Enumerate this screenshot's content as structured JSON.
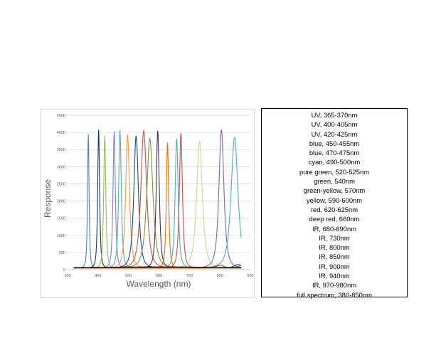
{
  "chart_data": {
    "type": "line",
    "title": "",
    "xlabel": "Wavelength (nm)",
    "ylabel": "Response",
    "xlim": [
      300,
      900
    ],
    "ylim": [
      0,
      4500
    ],
    "x_ticks": [
      300,
      400,
      500,
      600,
      700,
      800,
      900
    ],
    "y_ticks": [
      0,
      500,
      1000,
      1500,
      2000,
      2500,
      3000,
      3500,
      4000,
      4500
    ],
    "grid": "horizontal",
    "baseline": 50,
    "series": [
      {
        "name": "UV, 365-370nm",
        "color": "#4f81bd",
        "peak_x": 368,
        "peak_y": 3950,
        "fwhm": 8
      },
      {
        "name": "UV, 400-405nm",
        "color": "#17375e",
        "peak_x": 402,
        "peak_y": 4080,
        "fwhm": 10
      },
      {
        "name": "UV, 420-425nm",
        "color": "#9bbb59",
        "peak_x": 422,
        "peak_y": 3900,
        "fwhm": 11
      },
      {
        "name": "blue, 450-455nm",
        "color": "#7f7fd5",
        "peak_x": 453,
        "peak_y": 4030,
        "fwhm": 12
      },
      {
        "name": "blue, 470-475nm",
        "color": "#4bacc6",
        "peak_x": 472,
        "peak_y": 4060,
        "fwhm": 14
      },
      {
        "name": "cyan, 490-500nm",
        "color": "#f79646",
        "peak_x": 497,
        "peak_y": 3930,
        "fwhm": 20
      },
      {
        "name": "pure green, 520-525nm",
        "color": "#1f497d",
        "peak_x": 525,
        "peak_y": 3900,
        "fwhm": 24
      },
      {
        "name": "green, 540nm",
        "color": "#c0504d",
        "peak_x": 550,
        "peak_y": 4050,
        "fwhm": 30
      },
      {
        "name": "green-yellow, 570nm",
        "color": "#77933c",
        "peak_x": 570,
        "peak_y": 3820,
        "fwhm": 32
      },
      {
        "name": "yellow, 590-600nm",
        "color": "#403151",
        "peak_x": 596,
        "peak_y": 4050,
        "fwhm": 16
      },
      {
        "name": "red, 620-625nm",
        "color": "#e46c0a",
        "peak_x": 628,
        "peak_y": 3700,
        "fwhm": 12
      },
      {
        "name": "deep red, 660nm",
        "color": "#4bacc6",
        "peak_x": 658,
        "peak_y": 3820,
        "fwhm": 16
      },
      {
        "name": "IR, 680-690nm",
        "color": "#c0504d",
        "peak_x": 672,
        "peak_y": 3980,
        "fwhm": 16
      },
      {
        "name": "IR, 730nm",
        "color": "#c3d69b",
        "peak_x": 733,
        "peak_y": 3730,
        "fwhm": 30
      },
      {
        "name": "IR, 800nm",
        "color": "#8064a2",
        "peak_x": 805,
        "peak_y": 4080,
        "fwhm": 26
      },
      {
        "name": "IR, 850nm",
        "color": "#4bacc6",
        "peak_x": 848,
        "peak_y": 3850,
        "fwhm": 36
      },
      {
        "name": "IR, 900nm",
        "color": "#1f497d",
        "peak_x": 860,
        "peak_y": 150,
        "fwhm": 40
      },
      {
        "name": "IR, 940nm",
        "color": "#7f7f7f",
        "peak_x": 870,
        "peak_y": 120,
        "fwhm": 40
      },
      {
        "name": "IR, 970-980nm",
        "color": "#984807",
        "peak_x": 800,
        "peak_y": 130,
        "fwhm": 40
      },
      {
        "name": "full spectrum, 380-850nm",
        "color": "#000000",
        "peak_x": 600,
        "peak_y": 80,
        "fwhm": 600
      }
    ]
  }
}
